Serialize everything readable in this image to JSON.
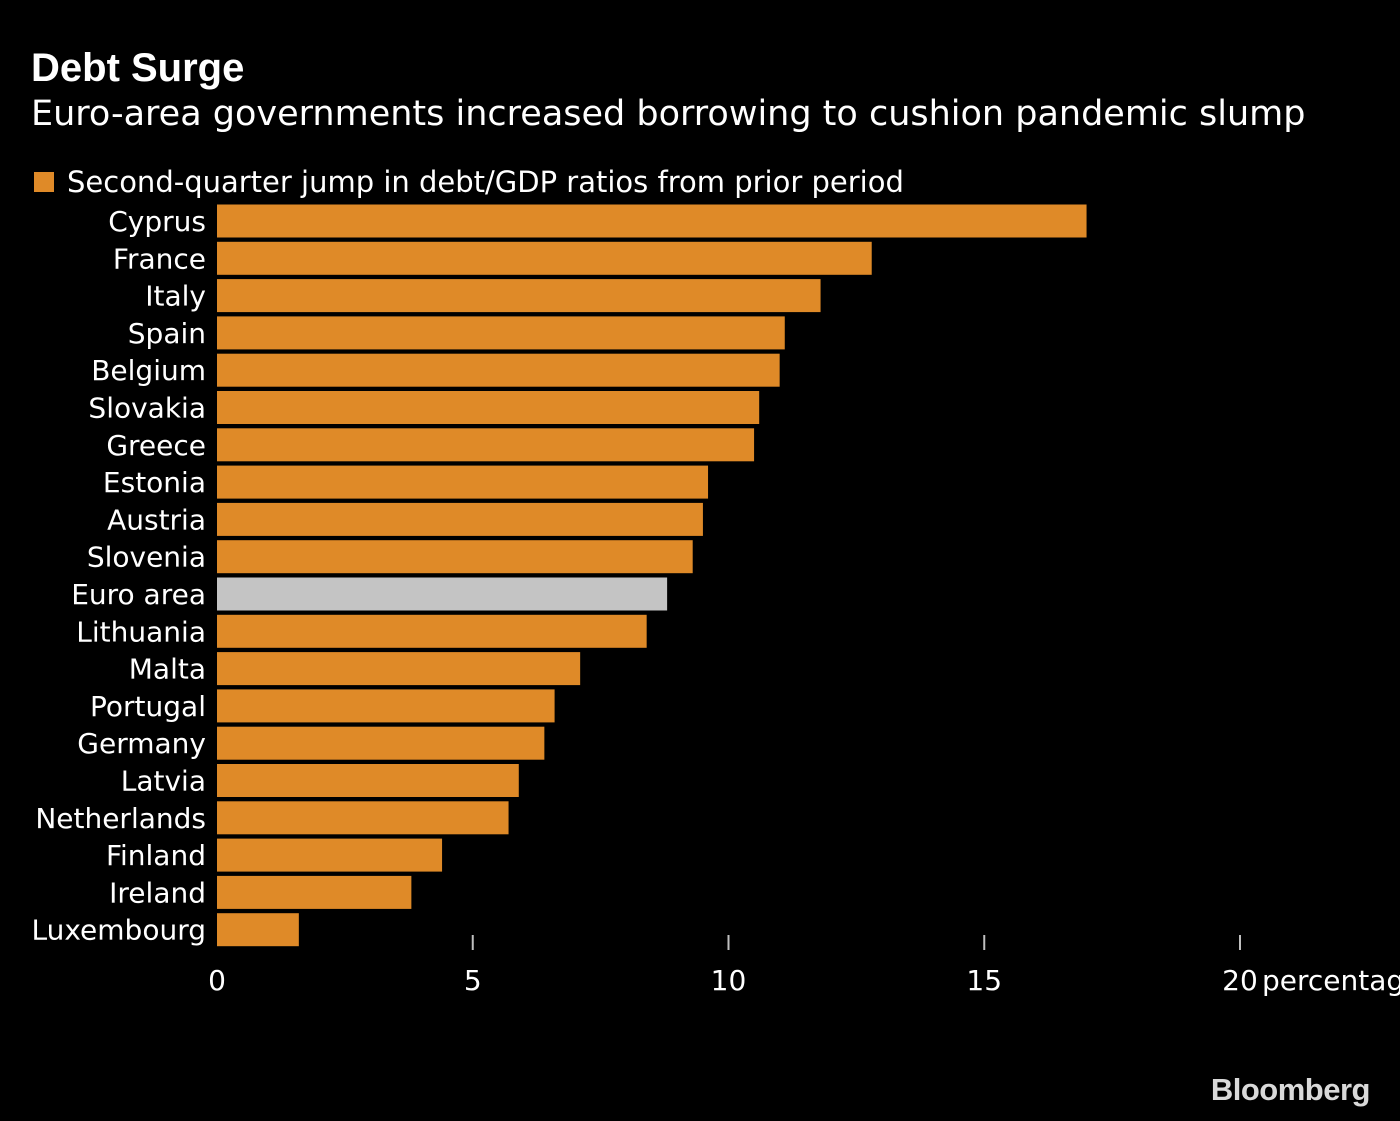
{
  "colors": {
    "background": "#000000",
    "bar": "#df8a28",
    "highlight": "#c4c4c4",
    "text": "#ffffff",
    "tick": "#bfbfbf"
  },
  "brand": "Bloomberg",
  "chart_data": {
    "type": "bar",
    "orientation": "horizontal",
    "title": "Debt Surge",
    "subtitle": "Euro-area governments increased borrowing to cushion pandemic slump",
    "legend": [
      "Second-quarter jump in debt/GDP ratios from prior period"
    ],
    "legend_position": "top-left",
    "xlabel": "percentage points",
    "xlim": [
      0,
      20
    ],
    "xticks": [
      0,
      5,
      10,
      15,
      20
    ],
    "grid": false,
    "highlighted_category": "Euro area",
    "categories": [
      "Cyprus",
      "France",
      "Italy",
      "Spain",
      "Belgium",
      "Slovakia",
      "Greece",
      "Estonia",
      "Austria",
      "Slovenia",
      "Euro area",
      "Lithuania",
      "Malta",
      "Portugal",
      "Germany",
      "Latvia",
      "Netherlands",
      "Finland",
      "Ireland",
      "Luxembourg"
    ],
    "values": [
      17.0,
      12.8,
      11.8,
      11.1,
      11.0,
      10.6,
      10.5,
      9.6,
      9.5,
      9.3,
      8.8,
      8.4,
      7.1,
      6.6,
      6.4,
      5.9,
      5.7,
      4.4,
      3.8,
      1.6
    ]
  }
}
